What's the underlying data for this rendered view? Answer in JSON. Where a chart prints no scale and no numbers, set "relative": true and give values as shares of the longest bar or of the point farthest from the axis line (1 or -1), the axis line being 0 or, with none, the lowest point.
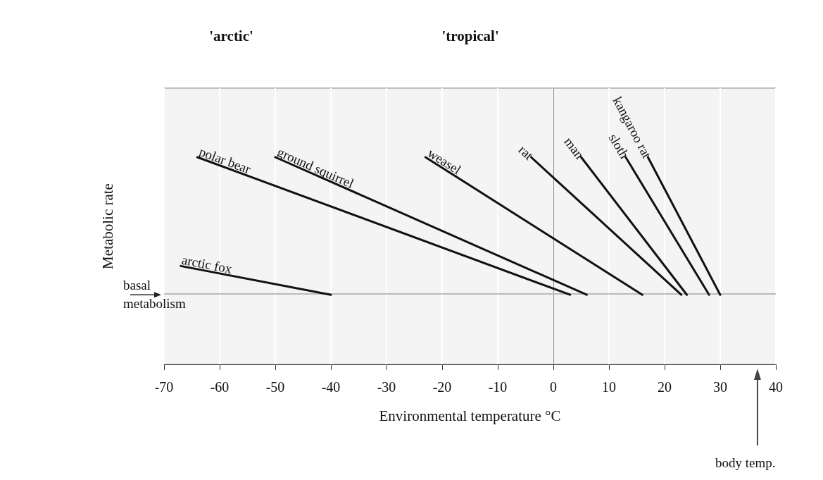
{
  "chart_data": {
    "type": "line",
    "relative": true,
    "xlabel": "Environmental temperature °C",
    "ylabel": "Metabolic rate",
    "xlim": [
      -70,
      40
    ],
    "xticks": [
      -70,
      -60,
      -50,
      -40,
      -30,
      -20,
      -10,
      0,
      10,
      20,
      30,
      40
    ],
    "grid": "x",
    "legend": false,
    "marker": "none",
    "series": [
      {
        "name": "arctic fox",
        "color": "#111111",
        "x": [
          -67,
          -40
        ],
        "values": [
          0.475,
          0.336
        ]
      },
      {
        "name": "polar bear",
        "color": "#111111",
        "x": [
          -64,
          3
        ],
        "values": [
          1,
          0.336
        ]
      },
      {
        "name": "ground squirrel",
        "color": "#111111",
        "x": [
          -50,
          6
        ],
        "values": [
          1,
          0.336
        ]
      },
      {
        "name": "weasel",
        "color": "#111111",
        "x": [
          -23,
          16
        ],
        "values": [
          1,
          0.336
        ]
      },
      {
        "name": "rat",
        "color": "#111111",
        "x": [
          -4,
          23
        ],
        "values": [
          1,
          0.336
        ]
      },
      {
        "name": "man",
        "color": "#111111",
        "x": [
          5,
          24
        ],
        "values": [
          1,
          0.336
        ]
      },
      {
        "name": "sloth",
        "color": "#111111",
        "x": [
          13,
          28
        ],
        "values": [
          1,
          0.336
        ]
      },
      {
        "name": "kangaroo rat",
        "color": "#111111",
        "x": [
          17,
          30
        ],
        "values": [
          1,
          0.336
        ]
      }
    ],
    "ref_lines": [
      {
        "axis": "y",
        "value": 0.336,
        "label": "basal metabolism",
        "color": "#bbbbbb"
      }
    ],
    "annotations": [
      "'arctic'",
      "'tropical'",
      "body temp."
    ]
  }
}
